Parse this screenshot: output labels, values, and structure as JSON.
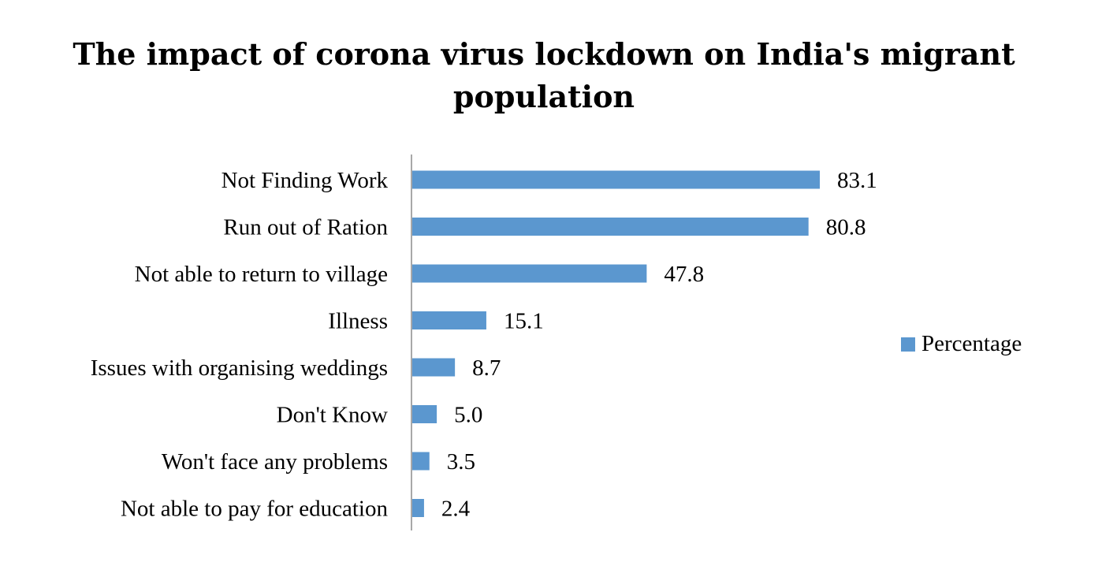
{
  "chart_data": {
    "type": "bar",
    "orientation": "horizontal",
    "title": "The impact of corona virus lockdown on India's migrant population",
    "categories": [
      "Not Finding Work",
      "Run out of Ration",
      "Not able to return to village",
      "Illness",
      "Issues with organising weddings",
      "Don't Know",
      "Won't face any problems",
      "Not able to pay for education"
    ],
    "series": [
      {
        "name": "Percentage",
        "values": [
          83.1,
          80.8,
          47.8,
          15.1,
          8.7,
          5.0,
          3.5,
          2.4
        ],
        "value_labels": [
          "83.1",
          "80.8",
          "47.8",
          "15.1",
          "8.7",
          "5.0",
          "3.5",
          "2.4"
        ],
        "color": "#5b97cf"
      }
    ],
    "xlim": [
      0,
      100
    ],
    "xlabel": "",
    "ylabel": "",
    "grid": false,
    "legend_position": "right"
  }
}
